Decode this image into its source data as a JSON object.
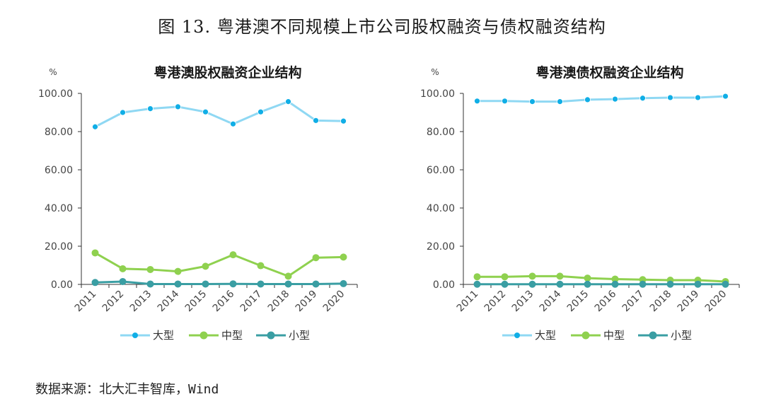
{
  "figure_title": "图 13.  粤港澳不同规模上市公司股权融资与债权融资结构",
  "source": "数据来源：北大汇丰智库，Wind",
  "colors": {
    "large": "#8fd8f3",
    "large_marker": "#10aee6",
    "medium": "#8fd14f",
    "small": "#3a9ea3",
    "axis": "#333333"
  },
  "chart_data": [
    {
      "type": "line",
      "title": "粤港澳股权融资企业结构",
      "unit": "%",
      "categories": [
        "2011",
        "2012",
        "2013",
        "2014",
        "2015",
        "2016",
        "2017",
        "2018",
        "2019",
        "2020"
      ],
      "yticks": [
        "0.00",
        "20.00",
        "40.00",
        "60.00",
        "80.00",
        "100.00"
      ],
      "ylim": [
        0,
        100
      ],
      "series": [
        {
          "key": "large",
          "name": "大型",
          "values": [
            82.5,
            90.0,
            92.0,
            93.0,
            90.3,
            84.0,
            90.3,
            95.7,
            85.8,
            85.5
          ]
        },
        {
          "key": "medium",
          "name": "中型",
          "values": [
            16.5,
            8.2,
            7.8,
            6.8,
            9.5,
            15.5,
            9.8,
            4.3,
            14.0,
            14.3
          ]
        },
        {
          "key": "small",
          "name": "小型",
          "values": [
            1.0,
            1.5,
            0.2,
            0.2,
            0.2,
            0.3,
            0.2,
            0.2,
            0.2,
            0.4
          ]
        }
      ]
    },
    {
      "type": "line",
      "title": "粤港澳债权融资企业结构",
      "unit": "%",
      "categories": [
        "2011",
        "2012",
        "2013",
        "2014",
        "2015",
        "2016",
        "2017",
        "2018",
        "2019",
        "2020"
      ],
      "yticks": [
        "0.00",
        "20.00",
        "40.00",
        "60.00",
        "80.00",
        "100.00"
      ],
      "ylim": [
        0,
        100
      ],
      "series": [
        {
          "key": "large",
          "name": "大型",
          "values": [
            96.0,
            96.0,
            95.7,
            95.7,
            96.7,
            97.0,
            97.5,
            97.8,
            97.8,
            98.5
          ]
        },
        {
          "key": "medium",
          "name": "中型",
          "values": [
            4.0,
            4.0,
            4.3,
            4.3,
            3.3,
            2.8,
            2.5,
            2.2,
            2.2,
            1.5
          ]
        },
        {
          "key": "small",
          "name": "小型",
          "values": [
            0.1,
            0.1,
            0.1,
            0.1,
            0.1,
            0.1,
            0.1,
            0.1,
            0.1,
            0.1
          ]
        }
      ]
    }
  ]
}
